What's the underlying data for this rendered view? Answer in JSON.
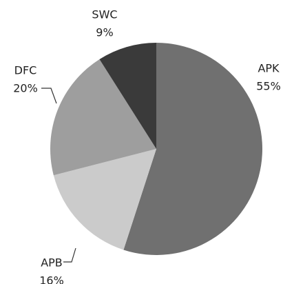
{
  "chart_data": {
    "type": "pie",
    "categories": [
      "APK",
      "APB",
      "DFC",
      "SWC"
    ],
    "values": [
      55,
      16,
      20,
      9
    ],
    "value_labels": [
      "55%",
      "16%",
      "20%",
      "9%"
    ],
    "colors": [
      "#707070",
      "#cbcbcb",
      "#9e9e9e",
      "#3a3a3a"
    ]
  }
}
